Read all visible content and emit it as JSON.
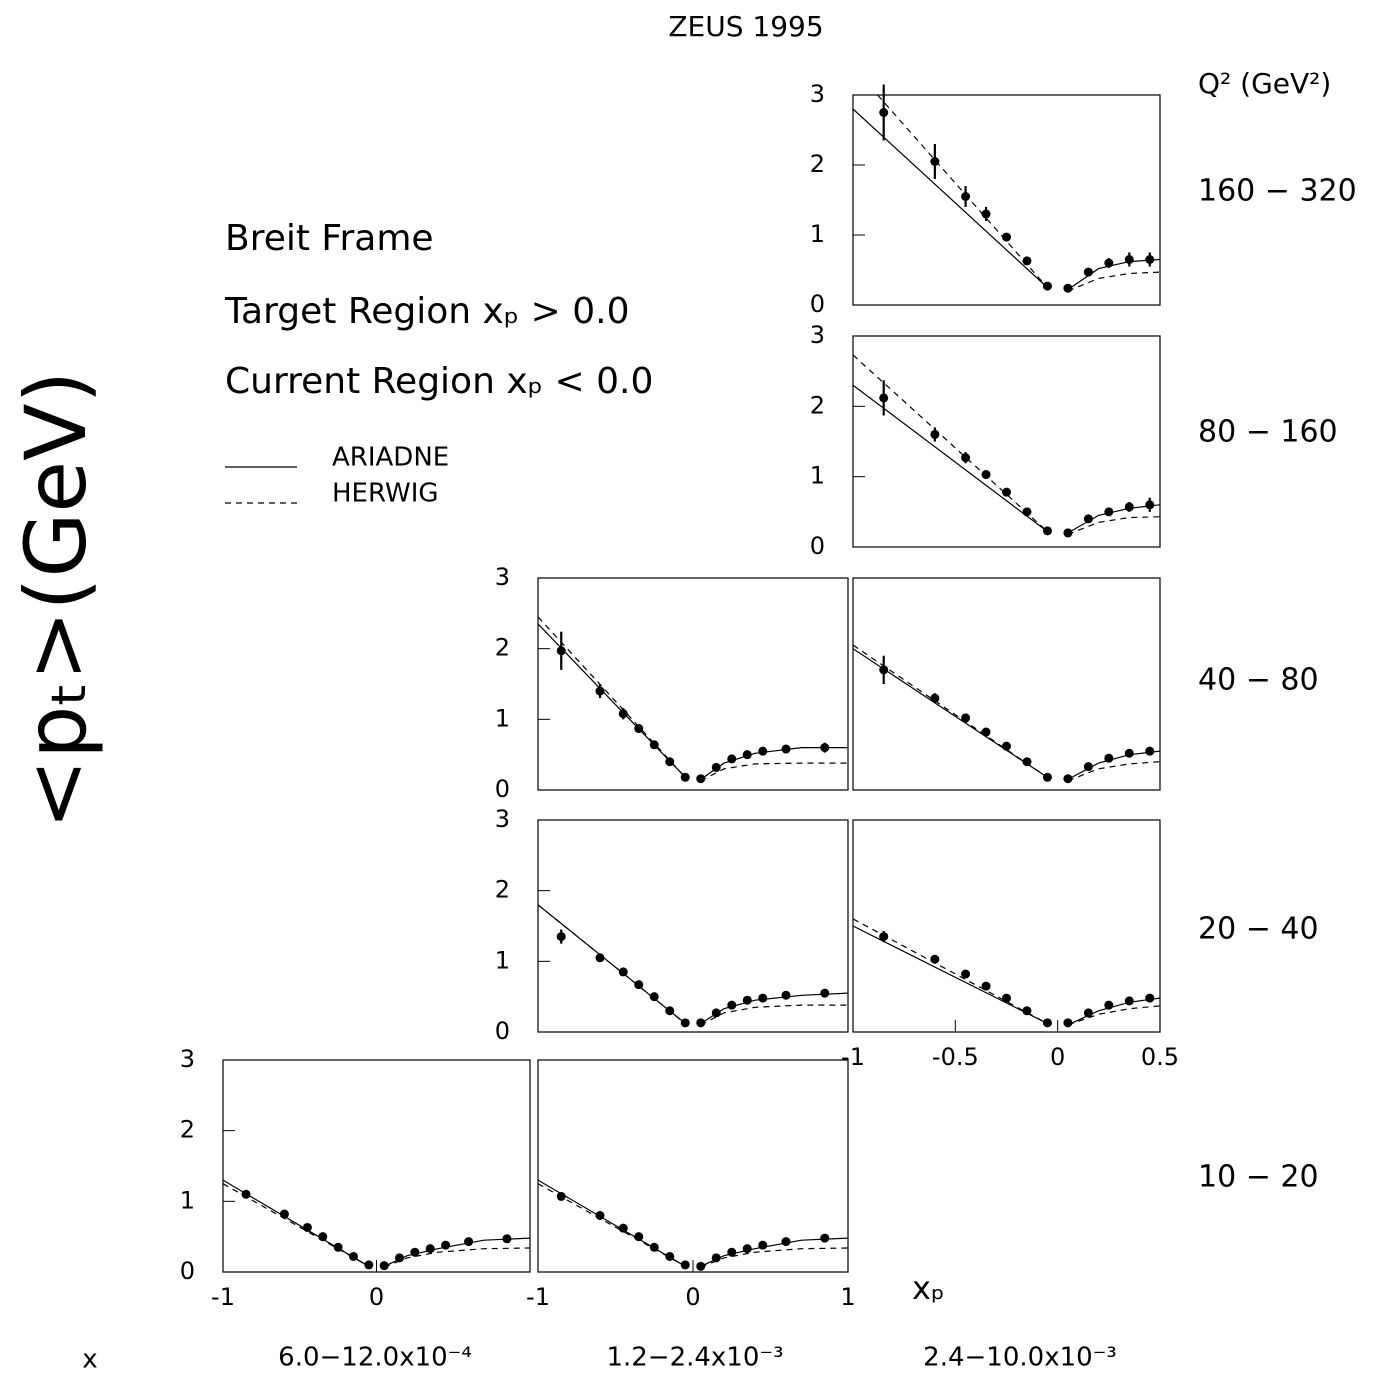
{
  "title": "ZEUS 1995",
  "y_label": "<pₜ>(GeV)",
  "q2_label": "Q² (GeV²)",
  "x_label": "xₚ",
  "column_label": "x",
  "frame_text": [
    "Breit Frame",
    "Target  Region xₚ > 0.0",
    "Current  Region xₚ < 0.0"
  ],
  "legend": [
    {
      "name": "ARIADNE",
      "style": "solid"
    },
    {
      "name": "HERWIG",
      "style": "dashed"
    }
  ],
  "q2_bins": [
    "160 − 320",
    "80 − 160",
    "40 − 80",
    "20 − 40",
    "10 − 20"
  ],
  "x_bins": [
    "6.0−12.0x10⁻⁴",
    "1.2−2.4x10⁻³",
    "2.4−10.0x10⁻³"
  ],
  "chart_data": [
    {
      "type": "scatter",
      "xlim": [
        -1,
        0.5
      ],
      "ylim": [
        0,
        3
      ],
      "yticks": [
        0,
        1,
        2,
        3
      ],
      "x": [
        -0.85,
        -0.6,
        -0.45,
        -0.35,
        -0.25,
        -0.15,
        -0.05,
        0.05,
        0.15,
        0.25,
        0.35,
        0.45
      ],
      "values": [
        2.75,
        2.05,
        1.55,
        1.3,
        0.97,
        0.63,
        0.27,
        0.24,
        0.47,
        0.6,
        0.65,
        0.65
      ],
      "errors": [
        0.4,
        0.25,
        0.15,
        0.1,
        0.05,
        0.03,
        0.03,
        0.03,
        0.05,
        0.07,
        0.1,
        0.1
      ],
      "series": [
        {
          "style": "solid",
          "x": [
            -1,
            -0.05,
            0,
            0.05,
            0.2,
            0.35,
            0.5
          ],
          "values": [
            2.8,
            0.25,
            null,
            0.22,
            0.52,
            0.62,
            0.65
          ]
        },
        {
          "style": "dashed",
          "x": [
            -0.88,
            -0.05,
            0,
            0.05,
            0.2,
            0.35,
            0.5
          ],
          "values": [
            3.0,
            0.25,
            null,
            0.2,
            0.38,
            0.45,
            0.47
          ]
        }
      ]
    },
    {
      "type": "scatter",
      "xlim": [
        -1,
        0.5
      ],
      "ylim": [
        0,
        3
      ],
      "yticks": [
        0,
        1,
        2,
        3
      ],
      "x": [
        -0.85,
        -0.6,
        -0.45,
        -0.35,
        -0.25,
        -0.15,
        -0.05,
        0.05,
        0.15,
        0.25,
        0.35,
        0.45
      ],
      "values": [
        2.12,
        1.6,
        1.27,
        1.03,
        0.78,
        0.5,
        0.23,
        0.2,
        0.4,
        0.5,
        0.57,
        0.6
      ],
      "errors": [
        0.25,
        0.1,
        0.08,
        0.03,
        0.03,
        0.03,
        0.03,
        0.03,
        0.04,
        0.05,
        0.07,
        0.1
      ],
      "series": [
        {
          "style": "solid",
          "x": [
            -1,
            -0.05,
            0,
            0.05,
            0.2,
            0.35,
            0.5
          ],
          "values": [
            2.3,
            0.22,
            null,
            0.2,
            0.45,
            0.55,
            0.6
          ]
        },
        {
          "style": "dashed",
          "x": [
            -1,
            -0.05,
            0,
            0.05,
            0.2,
            0.35,
            0.5
          ],
          "values": [
            2.73,
            0.22,
            null,
            0.18,
            0.35,
            0.42,
            0.43
          ]
        }
      ]
    },
    {
      "type": "scatter",
      "xlim": [
        -1,
        1
      ],
      "ylim": [
        0,
        3
      ],
      "yticks": [
        0,
        1,
        2,
        3
      ],
      "x": [
        -0.85,
        -0.6,
        -0.45,
        -0.35,
        -0.25,
        -0.15,
        -0.05,
        0.05,
        0.15,
        0.25,
        0.35,
        0.45,
        0.6,
        0.85
      ],
      "values": [
        1.97,
        1.4,
        1.08,
        0.87,
        0.64,
        0.4,
        0.18,
        0.16,
        0.32,
        0.44,
        0.5,
        0.55,
        0.58,
        0.6
      ],
      "errors": [
        0.27,
        0.1,
        0.08,
        0.06,
        0.03,
        0.03,
        0.03,
        0.03,
        0.03,
        0.03,
        0.03,
        0.04,
        0.05,
        0.07
      ],
      "series": [
        {
          "style": "solid",
          "x": [
            -1,
            -0.05,
            0,
            0.05,
            0.2,
            0.4,
            0.7,
            1
          ],
          "values": [
            2.35,
            0.18,
            null,
            0.15,
            0.38,
            0.52,
            0.6,
            0.6
          ]
        },
        {
          "style": "dashed",
          "x": [
            -1,
            -0.05,
            0,
            0.05,
            0.2,
            0.4,
            0.7,
            1
          ],
          "values": [
            2.45,
            0.18,
            null,
            0.13,
            0.3,
            0.37,
            0.38,
            0.38
          ]
        }
      ]
    },
    {
      "type": "scatter",
      "xlim": [
        -1,
        0.5
      ],
      "ylim": [
        0,
        3
      ],
      "x": [
        -0.85,
        -0.6,
        -0.45,
        -0.35,
        -0.25,
        -0.15,
        -0.05,
        0.05,
        0.15,
        0.25,
        0.35,
        0.45
      ],
      "values": [
        1.7,
        1.3,
        1.02,
        0.82,
        0.62,
        0.4,
        0.18,
        0.16,
        0.33,
        0.45,
        0.52,
        0.55
      ],
      "errors": [
        0.2,
        0.07,
        0.06,
        0.03,
        0.03,
        0.03,
        0.03,
        0.03,
        0.03,
        0.04,
        0.05,
        0.06
      ],
      "series": [
        {
          "style": "solid",
          "x": [
            -1,
            -0.05,
            0,
            0.05,
            0.2,
            0.35,
            0.5
          ],
          "values": [
            2.0,
            0.18,
            null,
            0.15,
            0.38,
            0.5,
            0.55
          ]
        },
        {
          "style": "dashed",
          "x": [
            -1,
            -0.05,
            0,
            0.05,
            0.2,
            0.35,
            0.5
          ],
          "values": [
            2.05,
            0.18,
            null,
            0.13,
            0.3,
            0.37,
            0.4
          ]
        }
      ]
    },
    {
      "type": "scatter",
      "xlim": [
        -1,
        1
      ],
      "ylim": [
        0,
        3
      ],
      "yticks": [
        0,
        1,
        2,
        3
      ],
      "x": [
        -0.85,
        -0.6,
        -0.45,
        -0.35,
        -0.25,
        -0.15,
        -0.05,
        0.05,
        0.15,
        0.25,
        0.35,
        0.45,
        0.6,
        0.85
      ],
      "values": [
        1.35,
        1.05,
        0.85,
        0.67,
        0.5,
        0.3,
        0.13,
        0.13,
        0.27,
        0.38,
        0.45,
        0.48,
        0.52,
        0.55
      ],
      "errors": [
        0.1,
        0.04,
        0.03,
        0.03,
        0.03,
        0.03,
        0.03,
        0.03,
        0.03,
        0.03,
        0.03,
        0.03,
        0.04,
        0.05
      ],
      "series": [
        {
          "style": "solid",
          "x": [
            -1,
            -0.05,
            0,
            0.05,
            0.2,
            0.4,
            0.7,
            1
          ],
          "values": [
            1.8,
            0.12,
            null,
            0.12,
            0.33,
            0.45,
            0.52,
            0.55
          ]
        },
        {
          "style": "dashed",
          "x": [
            -1,
            -0.05,
            0,
            0.05,
            0.2,
            0.4,
            0.7,
            1
          ],
          "values": [
            1.8,
            0.12,
            null,
            0.1,
            0.27,
            0.35,
            0.38,
            0.38
          ]
        }
      ]
    },
    {
      "type": "scatter",
      "xlim": [
        -1,
        0.5
      ],
      "ylim": [
        0,
        3
      ],
      "xticks": [
        -1,
        -0.5,
        0,
        0.5
      ],
      "x": [
        -0.85,
        -0.6,
        -0.45,
        -0.35,
        -0.25,
        -0.15,
        -0.05,
        0.05,
        0.15,
        0.25,
        0.35,
        0.45
      ],
      "values": [
        1.35,
        1.03,
        0.82,
        0.65,
        0.48,
        0.3,
        0.13,
        0.13,
        0.27,
        0.38,
        0.44,
        0.48
      ],
      "errors": [
        0.08,
        0.03,
        0.03,
        0.03,
        0.03,
        0.03,
        0.03,
        0.03,
        0.03,
        0.03,
        0.03,
        0.03
      ],
      "series": [
        {
          "style": "solid",
          "x": [
            -1,
            -0.05,
            0,
            0.05,
            0.2,
            0.35,
            0.5
          ],
          "values": [
            1.5,
            0.12,
            null,
            0.1,
            0.3,
            0.42,
            0.48
          ]
        },
        {
          "style": "dashed",
          "x": [
            -1,
            -0.05,
            0,
            0.05,
            0.2,
            0.35,
            0.5
          ],
          "values": [
            1.6,
            0.12,
            null,
            0.1,
            0.25,
            0.33,
            0.37
          ]
        }
      ]
    },
    {
      "type": "scatter",
      "xlim": [
        -1,
        1
      ],
      "ylim": [
        0,
        3
      ],
      "yticks": [
        0,
        1,
        2,
        3
      ],
      "xticks": [
        -1,
        0
      ],
      "x": [
        -0.85,
        -0.6,
        -0.45,
        -0.35,
        -0.25,
        -0.15,
        -0.05,
        0.05,
        0.15,
        0.25,
        0.35,
        0.45,
        0.6,
        0.85
      ],
      "values": [
        1.1,
        0.82,
        0.63,
        0.5,
        0.35,
        0.22,
        0.1,
        0.09,
        0.2,
        0.28,
        0.33,
        0.38,
        0.43,
        0.47
      ],
      "errors": [
        0.05,
        0.03,
        0.03,
        0.03,
        0.03,
        0.03,
        0.03,
        0.03,
        0.03,
        0.03,
        0.03,
        0.03,
        0.03,
        0.03
      ],
      "series": [
        {
          "style": "solid",
          "x": [
            -1,
            -0.05,
            0,
            0.05,
            0.2,
            0.4,
            0.7,
            1
          ],
          "values": [
            1.3,
            0.08,
            null,
            0.08,
            0.23,
            0.33,
            0.45,
            0.48
          ]
        },
        {
          "style": "dashed",
          "x": [
            -1,
            -0.05,
            0,
            0.05,
            0.2,
            0.4,
            0.7,
            1
          ],
          "values": [
            1.25,
            0.08,
            null,
            0.07,
            0.2,
            0.28,
            0.33,
            0.34
          ]
        }
      ]
    },
    {
      "type": "scatter",
      "xlim": [
        -1,
        1
      ],
      "ylim": [
        0,
        3
      ],
      "xticks": [
        -1,
        0,
        1
      ],
      "x": [
        -0.85,
        -0.6,
        -0.45,
        -0.35,
        -0.25,
        -0.15,
        -0.05,
        0.05,
        0.15,
        0.25,
        0.35,
        0.45,
        0.6,
        0.85
      ],
      "values": [
        1.07,
        0.8,
        0.62,
        0.5,
        0.35,
        0.22,
        0.1,
        0.08,
        0.2,
        0.28,
        0.33,
        0.38,
        0.43,
        0.48
      ],
      "errors": [
        0.05,
        0.03,
        0.03,
        0.03,
        0.03,
        0.03,
        0.03,
        0.03,
        0.03,
        0.03,
        0.03,
        0.03,
        0.03,
        0.03
      ],
      "series": [
        {
          "style": "solid",
          "x": [
            -1,
            -0.05,
            0,
            0.05,
            0.2,
            0.4,
            0.7,
            1
          ],
          "values": [
            1.3,
            0.08,
            null,
            0.08,
            0.23,
            0.33,
            0.45,
            0.48
          ]
        },
        {
          "style": "dashed",
          "x": [
            -1,
            -0.05,
            0,
            0.05,
            0.2,
            0.4,
            0.7,
            1
          ],
          "values": [
            1.25,
            0.08,
            null,
            0.07,
            0.2,
            0.28,
            0.33,
            0.34
          ]
        }
      ]
    }
  ]
}
